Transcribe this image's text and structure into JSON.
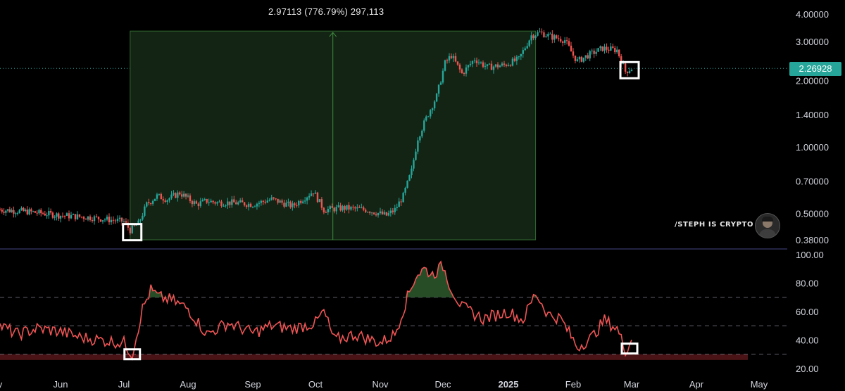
{
  "measure": {
    "label": "2.97113 (776.79%) 297,113"
  },
  "watermark": {
    "text": "/STEPH IS CRYPTO"
  },
  "current_price": {
    "label": "2.26928",
    "value": 2.26928,
    "color": "#26a69a"
  },
  "colors": {
    "up": "#26a69a",
    "down": "#ef5350",
    "rsi_line": "#f05454",
    "measure_fill": "#142414",
    "measure_border": "#2f6a2f",
    "highlight_box": "#ffffff"
  },
  "chart_data": [
    {
      "type": "line",
      "subtype": "candlestick",
      "scale": "log",
      "yticks": [
        "4.00000",
        "3.00000",
        "2.00000",
        "1.40000",
        "1.00000",
        "0.70000",
        "0.50000",
        "0.38000"
      ],
      "ytick_values": [
        4.0,
        3.0,
        2.0,
        1.4,
        1.0,
        0.7,
        0.5,
        0.38
      ],
      "ylim": [
        0.36,
        4.5
      ],
      "xticks": [
        "y",
        "Jun",
        "Jul",
        "Aug",
        "Sep",
        "Oct",
        "Nov",
        "Dec",
        "2025",
        "Feb",
        "Mar",
        "Apr",
        "May"
      ],
      "xtick_dates": [
        "2024-05-01",
        "2024-06-01",
        "2024-07-01",
        "2024-08-01",
        "2024-09-01",
        "2024-10-01",
        "2024-11-01",
        "2024-12-01",
        "2025-01-01",
        "2025-02-01",
        "2025-03-01",
        "2025-04-01",
        "2025-05-01"
      ],
      "x": [
        "2024-05-01",
        "2024-05-15",
        "2024-06-01",
        "2024-06-15",
        "2024-07-01",
        "2024-07-04",
        "2024-07-08",
        "2024-07-12",
        "2024-07-17",
        "2024-07-22",
        "2024-07-28",
        "2024-08-05",
        "2024-08-10",
        "2024-08-15",
        "2024-08-22",
        "2024-09-01",
        "2024-09-10",
        "2024-09-20",
        "2024-09-30",
        "2024-10-05",
        "2024-10-15",
        "2024-10-25",
        "2024-11-04",
        "2024-11-08",
        "2024-11-12",
        "2024-11-16",
        "2024-11-19",
        "2024-11-23",
        "2024-11-28",
        "2024-12-02",
        "2024-12-05",
        "2024-12-10",
        "2024-12-16",
        "2024-12-22",
        "2024-12-30",
        "2025-01-06",
        "2025-01-12",
        "2025-01-16",
        "2025-01-22",
        "2025-01-28",
        "2025-02-01",
        "2025-02-03",
        "2025-02-08",
        "2025-02-15",
        "2025-02-22",
        "2025-02-26",
        "2025-03-01"
      ],
      "values": [
        0.52,
        0.51,
        0.49,
        0.48,
        0.46,
        0.42,
        0.45,
        0.55,
        0.6,
        0.58,
        0.62,
        0.55,
        0.57,
        0.56,
        0.56,
        0.55,
        0.58,
        0.54,
        0.63,
        0.52,
        0.53,
        0.52,
        0.49,
        0.52,
        0.6,
        0.78,
        1.1,
        1.35,
        1.7,
        2.4,
        2.6,
        2.15,
        2.5,
        2.3,
        2.35,
        2.5,
        3.2,
        3.3,
        3.15,
        3.05,
        2.6,
        2.45,
        2.6,
        2.8,
        2.75,
        2.2,
        2.27
      ],
      "measure": {
        "start": "2024-07-04",
        "end": "2025-01-14",
        "low": 0.38,
        "high": 3.35,
        "change": 2.97113,
        "percent": 776.79
      },
      "highlights": [
        {
          "date": "2024-07-05",
          "value": 0.41
        },
        {
          "date": "2025-02-28",
          "value": 2.22
        }
      ]
    },
    {
      "type": "line",
      "subtype": "rsi",
      "yticks": [
        "100.00",
        "80.00",
        "60.00",
        "40.00",
        "20.00"
      ],
      "ytick_values": [
        100,
        80,
        60,
        40,
        20
      ],
      "ylim": [
        20,
        100
      ],
      "bands": [
        70,
        50,
        30
      ],
      "oversold_zone": [
        26,
        30
      ],
      "x": [
        "2024-05-01",
        "2024-05-10",
        "2024-05-20",
        "2024-06-01",
        "2024-06-10",
        "2024-06-20",
        "2024-07-01",
        "2024-07-05",
        "2024-07-10",
        "2024-07-14",
        "2024-07-18",
        "2024-07-24",
        "2024-08-01",
        "2024-08-10",
        "2024-08-20",
        "2024-09-01",
        "2024-09-10",
        "2024-09-20",
        "2024-10-01",
        "2024-10-05",
        "2024-10-10",
        "2024-10-20",
        "2024-11-01",
        "2024-11-08",
        "2024-11-14",
        "2024-11-18",
        "2024-11-22",
        "2024-11-26",
        "2024-12-01",
        "2024-12-05",
        "2024-12-10",
        "2024-12-20",
        "2025-01-01",
        "2025-01-08",
        "2025-01-14",
        "2025-01-20",
        "2025-01-26",
        "2025-02-03",
        "2025-02-10",
        "2025-02-16",
        "2025-02-22",
        "2025-02-26",
        "2025-03-01"
      ],
      "values": [
        50,
        44,
        48,
        46,
        42,
        40,
        38,
        30,
        62,
        75,
        70,
        68,
        62,
        44,
        52,
        45,
        50,
        48,
        52,
        60,
        40,
        44,
        38,
        44,
        70,
        85,
        90,
        86,
        92,
        76,
        63,
        55,
        60,
        54,
        73,
        58,
        55,
        35,
        42,
        54,
        48,
        33,
        40
      ],
      "highlights": [
        {
          "date": "2024-07-05",
          "value": 30
        },
        {
          "date": "2025-02-28",
          "value": 34
        }
      ]
    }
  ]
}
